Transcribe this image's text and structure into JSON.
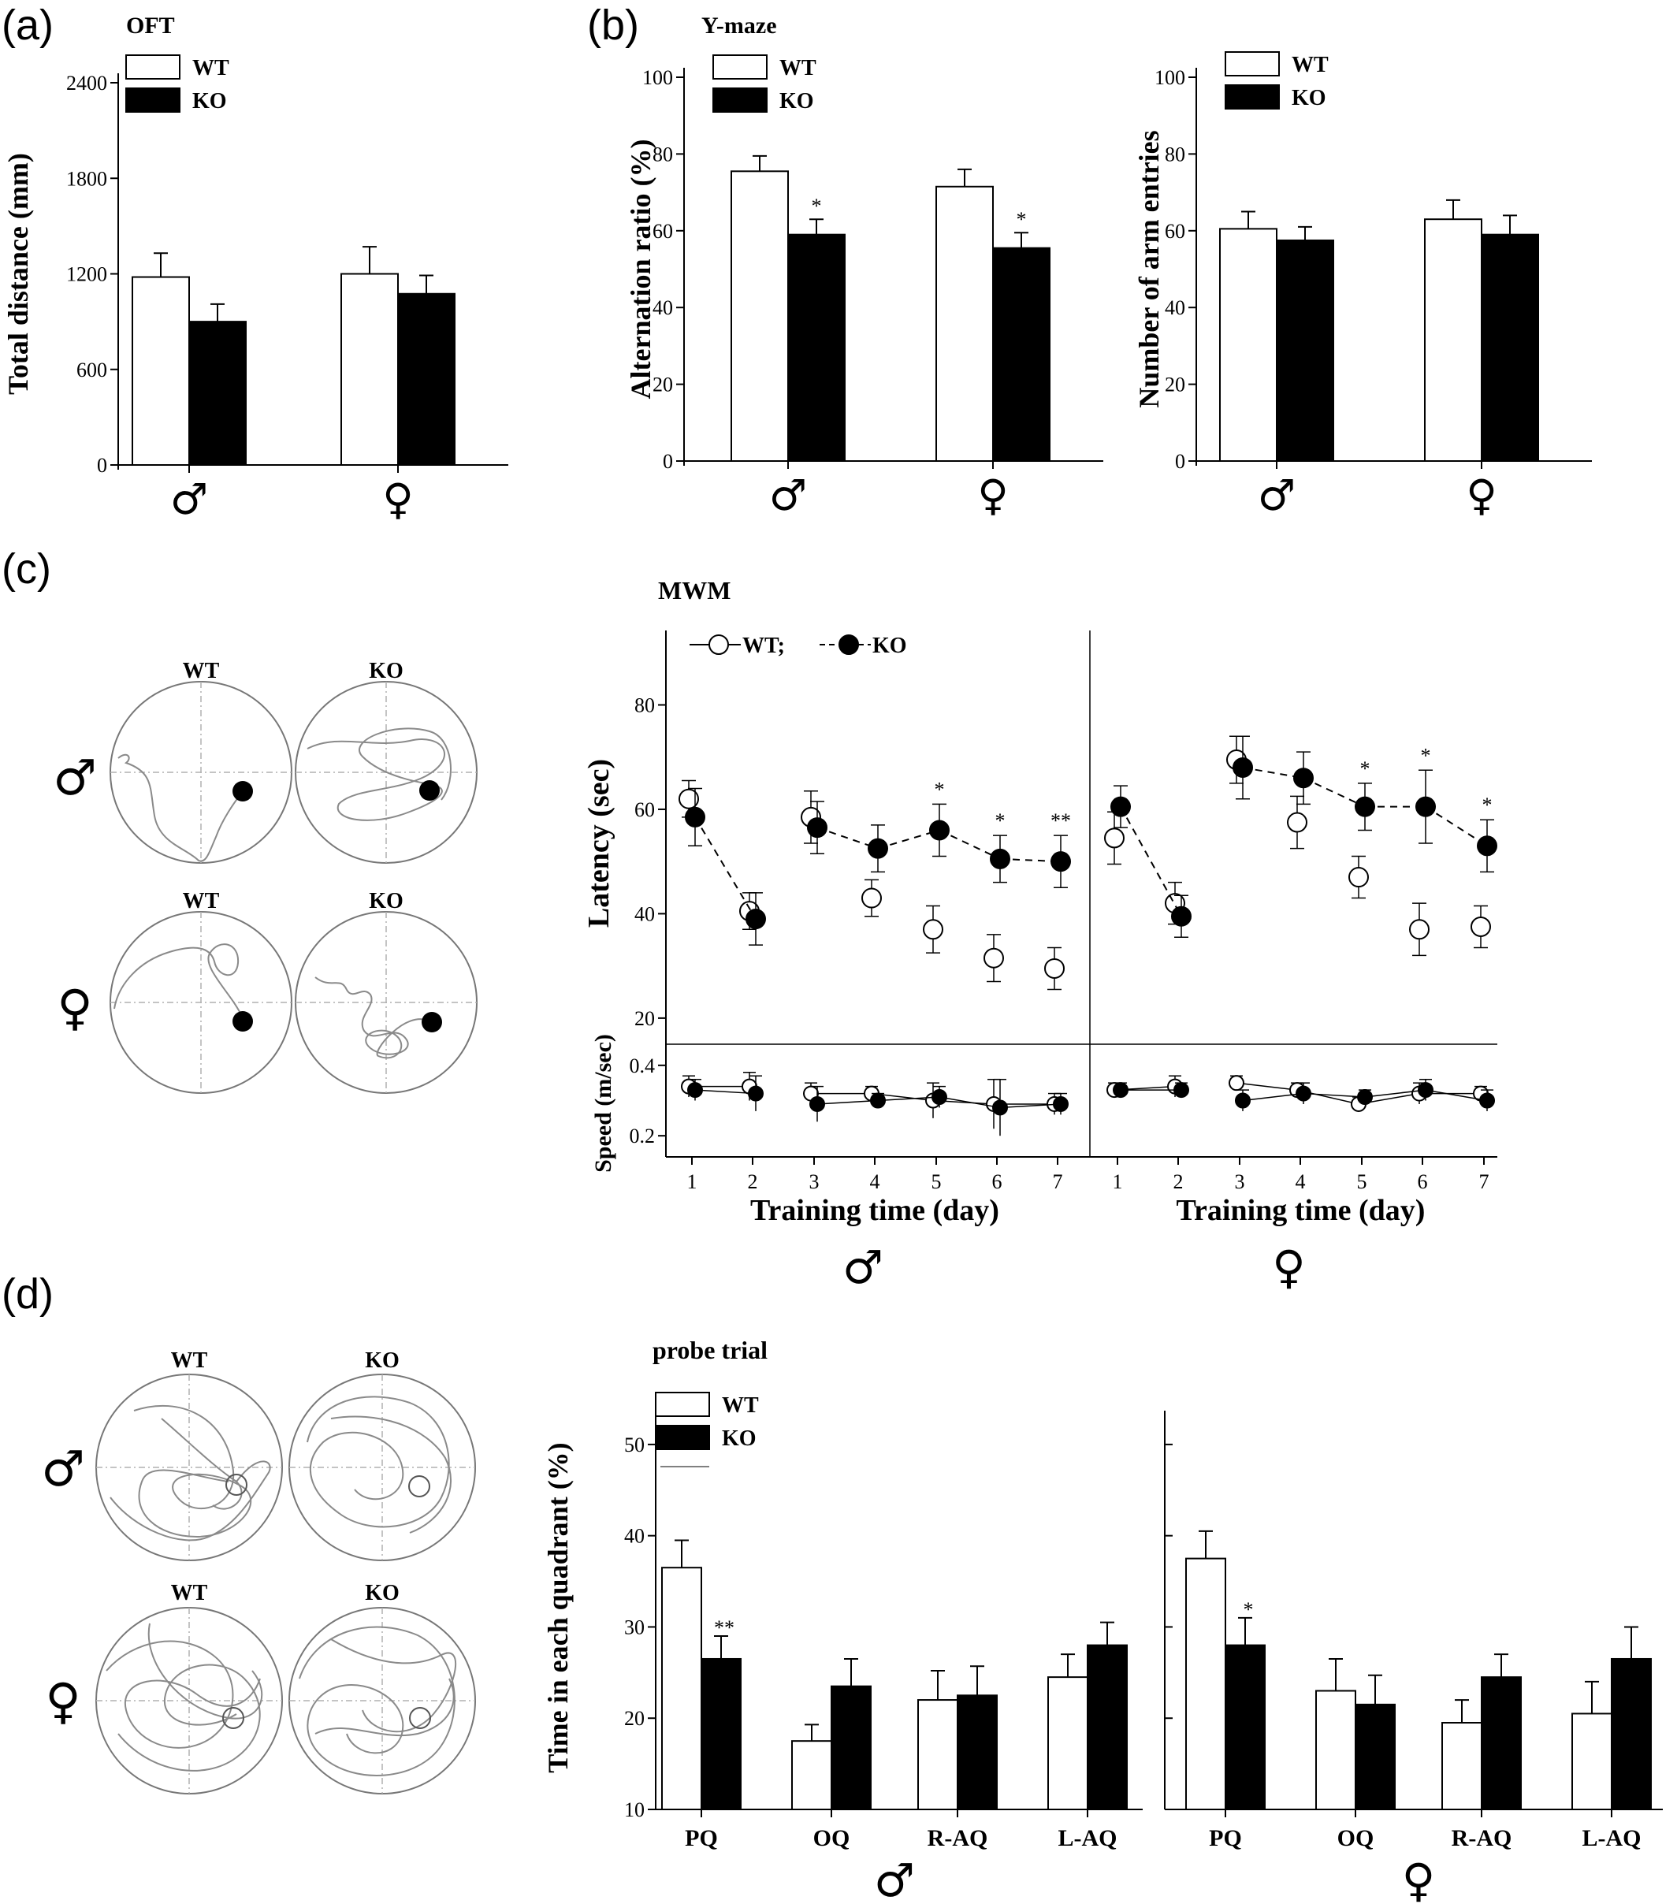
{
  "colors": {
    "wt_fill": "#ffffff",
    "ko_fill": "#000000",
    "axis": "#000000",
    "track": "#8a8a8a"
  },
  "panels": {
    "a": {
      "label": "(a)"
    },
    "b": {
      "label": "(b)"
    },
    "c": {
      "label": "(c)"
    },
    "d": {
      "label": "(d)"
    }
  },
  "symbols": {
    "male": "♂",
    "female": "♀"
  },
  "track_panels": {
    "c": {
      "top": [
        "WT",
        "KO"
      ],
      "bottom": [
        "WT",
        "KO"
      ]
    },
    "d": {
      "top": [
        "WT",
        "KO"
      ],
      "bottom": [
        "WT",
        "KO"
      ]
    }
  },
  "legend": {
    "wt": "WT",
    "ko": "KO",
    "mwm_wt": "WT;",
    "mwm_ko": "KO"
  },
  "chart_data": [
    {
      "id": "oft",
      "type": "bar",
      "title": "OFT",
      "ylabel": "Total distance (mm)",
      "ylim": [
        0,
        2400
      ],
      "yticks": [
        "0",
        "600",
        "1200",
        "1800",
        "2400"
      ],
      "categories": [
        "♂",
        "♀"
      ],
      "series": [
        {
          "name": "WT",
          "values": [
            1180,
            1200
          ],
          "errors": [
            150,
            170
          ]
        },
        {
          "name": "KO",
          "values": [
            900,
            1075
          ],
          "errors": [
            110,
            115
          ]
        }
      ],
      "legend_position": "top-left"
    },
    {
      "id": "ymaze_alt",
      "type": "bar",
      "title": "Y-maze",
      "ylabel": "Alternation ratio (%)",
      "ylim": [
        0,
        100
      ],
      "yticks": [
        "0",
        "20",
        "40",
        "60",
        "80",
        "100"
      ],
      "categories": [
        "♂",
        "♀"
      ],
      "series": [
        {
          "name": "WT",
          "values": [
            75.5,
            71.5
          ],
          "errors": [
            4,
            4.5
          ]
        },
        {
          "name": "KO",
          "values": [
            59,
            55.5
          ],
          "errors": [
            4,
            4
          ]
        }
      ],
      "annotations": [
        "*",
        "*"
      ],
      "legend_position": "top-left"
    },
    {
      "id": "ymaze_entries",
      "type": "bar",
      "ylabel": "Number of arm entries",
      "ylim": [
        0,
        100
      ],
      "yticks": [
        "0",
        "20",
        "40",
        "60",
        "80",
        "100"
      ],
      "categories": [
        "♂",
        "♀"
      ],
      "series": [
        {
          "name": "WT",
          "values": [
            60.5,
            63
          ],
          "errors": [
            4.5,
            5
          ]
        },
        {
          "name": "KO",
          "values": [
            57.5,
            59
          ],
          "errors": [
            3.5,
            5
          ]
        }
      ],
      "legend_position": "top-left"
    },
    {
      "id": "mwm",
      "type": "line",
      "title": "MWM",
      "ylabel": "Latency (sec)",
      "ylim": [
        15,
        92
      ],
      "yticks": [
        "20",
        "40",
        "60",
        "80"
      ],
      "speed_ylabel": "Speed (m/sec)",
      "speed_ylim": [
        0.14,
        0.46
      ],
      "speed_yticks": [
        "0.2",
        "0.4"
      ],
      "xlabel": "Training time (day)",
      "x": [
        1,
        2,
        3,
        4,
        5,
        6,
        7
      ],
      "x_tick_labels": [
        "1",
        "2",
        "3",
        "4",
        "5",
        "6",
        "7"
      ],
      "groups": [
        {
          "sex": "♂",
          "series": [
            {
              "name": "WT",
              "latency": [
                62,
                40.5,
                58.5,
                43,
                37,
                31.5,
                29.5
              ],
              "lat_err": [
                3.5,
                3.5,
                5,
                3.5,
                4.5,
                4.5,
                4
              ],
              "speed": [
                0.34,
                0.34,
                0.32,
                0.32,
                0.3,
                0.29,
                0.29
              ],
              "speed_err": [
                0.03,
                0.04,
                0.03,
                0.02,
                0.05,
                0.07,
                0.03
              ]
            },
            {
              "name": "KO",
              "latency": [
                58.5,
                39,
                56.5,
                52.5,
                56,
                50.5,
                50
              ],
              "lat_err": [
                5.5,
                5,
                5,
                4.5,
                5,
                4.5,
                5
              ],
              "speed": [
                0.33,
                0.32,
                0.29,
                0.3,
                0.31,
                0.28,
                0.29
              ],
              "speed_err": [
                0.03,
                0.05,
                0.05,
                0.02,
                0.03,
                0.08,
                0.03
              ]
            }
          ],
          "significance": [
            "",
            "",
            "",
            "",
            "*",
            "*",
            "**"
          ]
        },
        {
          "sex": "♀",
          "series": [
            {
              "name": "WT",
              "latency": [
                54.5,
                42,
                69.5,
                57.5,
                47,
                37,
                37.5
              ],
              "lat_err": [
                5,
                4,
                4.5,
                5,
                4,
                5,
                4
              ],
              "speed": [
                0.33,
                0.34,
                0.35,
                0.33,
                0.29,
                0.32,
                0.32
              ],
              "speed_err": [
                0.02,
                0.03,
                0.02,
                0.02,
                0.02,
                0.03,
                0.02
              ]
            },
            {
              "name": "KO",
              "latency": [
                60.5,
                39.5,
                68,
                66,
                60.5,
                60.5,
                53
              ],
              "lat_err": [
                4,
                4,
                6,
                5,
                4.5,
                7,
                5
              ],
              "speed": [
                0.33,
                0.33,
                0.3,
                0.32,
                0.31,
                0.33,
                0.3
              ],
              "speed_err": [
                0.02,
                0.02,
                0.03,
                0.03,
                0.02,
                0.03,
                0.03
              ]
            }
          ],
          "significance": [
            "",
            "",
            "",
            "",
            "*",
            "*",
            "*"
          ]
        }
      ]
    },
    {
      "id": "probe",
      "type": "bar",
      "title": "probe trial",
      "ylabel": "Time in each quadrant (%)",
      "ylim": [
        10,
        55
      ],
      "yticks": [
        "10",
        "20",
        "30",
        "40",
        "50"
      ],
      "categories": [
        "PQ",
        "OQ",
        "R-AQ",
        "L-AQ"
      ],
      "groups": [
        {
          "sex": "♂",
          "series": [
            {
              "name": "WT",
              "values": [
                36.5,
                17.5,
                22,
                24.5
              ],
              "errors": [
                3,
                1.8,
                3.2,
                2.5
              ]
            },
            {
              "name": "KO",
              "values": [
                26.5,
                23.5,
                22.5,
                28
              ],
              "errors": [
                2.5,
                3,
                3.2,
                2.5
              ]
            }
          ],
          "annotations": [
            "**",
            "",
            "",
            ""
          ]
        },
        {
          "sex": "♀",
          "series": [
            {
              "name": "WT",
              "values": [
                37.5,
                23,
                19.5,
                20.5
              ],
              "errors": [
                3,
                3.5,
                2.5,
                3.5
              ]
            },
            {
              "name": "KO",
              "values": [
                28,
                21.5,
                24.5,
                26.5
              ],
              "errors": [
                3,
                3.2,
                2.5,
                3.5
              ]
            }
          ],
          "annotations": [
            "*",
            "",
            "",
            ""
          ]
        }
      ]
    }
  ]
}
